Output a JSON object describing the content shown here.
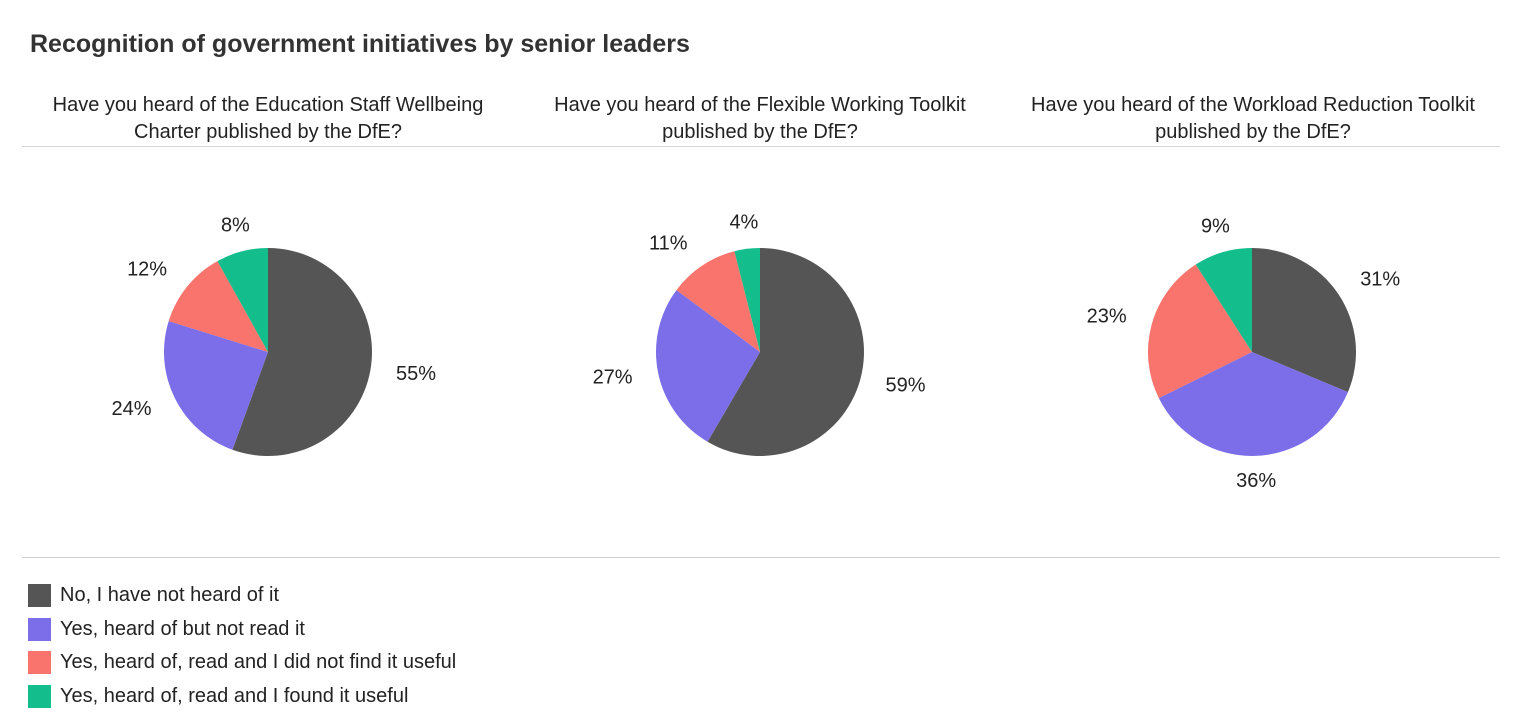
{
  "title": "Recognition of government initiatives by senior leaders",
  "questions": [
    "Have you heard of the Education Staff Wellbeing Charter published by the DfE?",
    "Have you heard of the Flexible Working Toolkit published by the DfE?",
    "Have you heard of the Workload Reduction Toolkit published by the DfE?"
  ],
  "legend": [
    {
      "label": "No, I have not heard of it",
      "color": "#555555"
    },
    {
      "label": "Yes, heard of but not read it",
      "color": "#7b6ee8"
    },
    {
      "label": "Yes, heard of, read and I did not find it useful",
      "color": "#f8746d"
    },
    {
      "label": "Yes, heard of, read and I found it useful",
      "color": "#13bd8c"
    }
  ],
  "chart_data": [
    {
      "type": "pie",
      "title": "Have you heard of the Education Staff Wellbeing Charter published by the DfE?",
      "categories": [
        "No, I have not heard of it",
        "Yes, heard of but not read it",
        "Yes, heard of, read and I did not find it useful",
        "Yes, heard of, read and I found it useful"
      ],
      "values": [
        55,
        24,
        12,
        8
      ],
      "labels": [
        "55%",
        "24%",
        "12%",
        "8%"
      ],
      "unit": "%"
    },
    {
      "type": "pie",
      "title": "Have you heard of the Flexible Working Toolkit published by the DfE?",
      "categories": [
        "No, I have not heard of it",
        "Yes, heard of but not read it",
        "Yes, heard of, read and I did not find it useful",
        "Yes, heard of, read and I found it useful"
      ],
      "values": [
        59,
        27,
        11,
        4
      ],
      "labels": [
        "59%",
        "27%",
        "11%",
        "4%"
      ],
      "unit": "%"
    },
    {
      "type": "pie",
      "title": "Have you heard of the Workload Reduction Toolkit published by the DfE?",
      "categories": [
        "No, I have not heard of it",
        "Yes, heard of but not read it",
        "Yes, heard of, read and I did not find it useful",
        "Yes, heard of, read and I found it useful"
      ],
      "values": [
        31,
        36,
        23,
        9
      ],
      "labels": [
        "31%",
        "36%",
        "23%",
        "9%"
      ],
      "unit": "%"
    }
  ]
}
